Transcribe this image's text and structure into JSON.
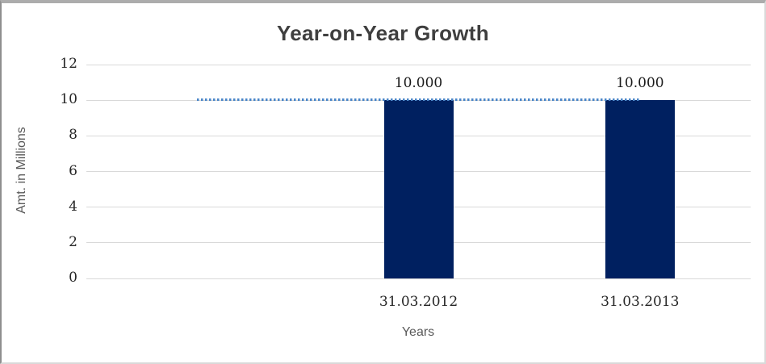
{
  "chart_data": {
    "type": "bar",
    "title": "Year-on-Year Growth",
    "xlabel": "Years",
    "ylabel": "Amt. in Millions",
    "categories": [
      "31.03.2012",
      "31.03.2013"
    ],
    "values": [
      10,
      10
    ],
    "data_labels": [
      "10.000",
      "10.000"
    ],
    "y_ticks": [
      0,
      2,
      4,
      6,
      8,
      10,
      12
    ],
    "ylim": [
      0,
      12
    ],
    "grid": "horizontal",
    "legend": "none",
    "trendline": {
      "type": "dotted-line",
      "value": 10,
      "color": "#4a86c8"
    },
    "colors": {
      "bar": "#002060",
      "gridline": "#d9d9d9",
      "title_text": "#3f3f3f",
      "axis_title_text": "#595959",
      "tick_label_text": "#262626"
    }
  }
}
